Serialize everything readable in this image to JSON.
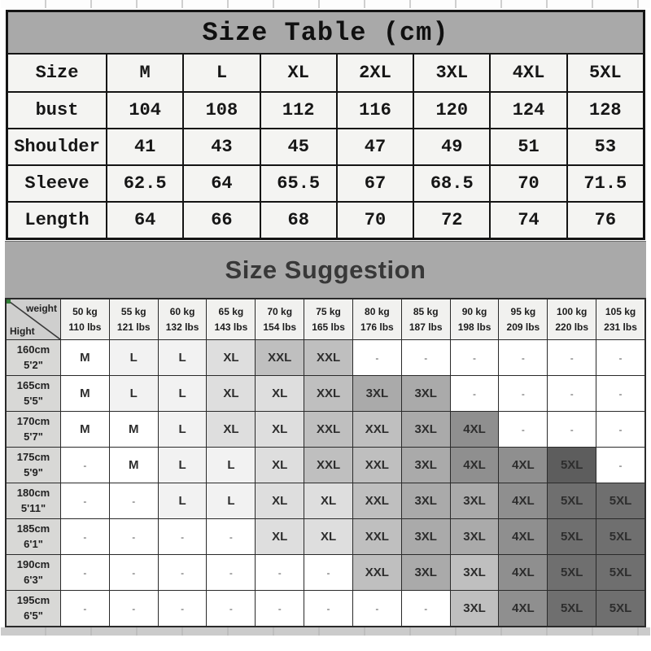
{
  "colors": {
    "table_header_bg": "#a9a9a9",
    "banner_bg": "#a9a9a9",
    "border_dark": "#141414",
    "shade_darkest": "#5d5d5d"
  },
  "size_table": {
    "title": "Size Table (cm)",
    "rows": [
      {
        "label": "Size",
        "values": [
          "M",
          "L",
          "XL",
          "2XL",
          "3XL",
          "4XL",
          "5XL"
        ]
      },
      {
        "label": "bust",
        "values": [
          "104",
          "108",
          "112",
          "116",
          "120",
          "124",
          "128"
        ]
      },
      {
        "label": "Shoulder",
        "values": [
          "41",
          "43",
          "45",
          "47",
          "49",
          "51",
          "53"
        ]
      },
      {
        "label": "Sleeve",
        "values": [
          "62.5",
          "64",
          "65.5",
          "67",
          "68.5",
          "70",
          "71.5"
        ]
      },
      {
        "label": "Length",
        "values": [
          "64",
          "66",
          "68",
          "70",
          "72",
          "74",
          "76"
        ]
      }
    ]
  },
  "suggestion_table": {
    "title": "Size Suggestion",
    "corner": {
      "top": "weight",
      "bottom": "Hight"
    },
    "weights": [
      {
        "kg": "50 kg",
        "lbs": "110 lbs"
      },
      {
        "kg": "55 kg",
        "lbs": "121 lbs"
      },
      {
        "kg": "60 kg",
        "lbs": "132 lbs"
      },
      {
        "kg": "65 kg",
        "lbs": "143 lbs"
      },
      {
        "kg": "70 kg",
        "lbs": "154 lbs"
      },
      {
        "kg": "75 kg",
        "lbs": "165 lbs"
      },
      {
        "kg": "80 kg",
        "lbs": "176 lbs"
      },
      {
        "kg": "85 kg",
        "lbs": "187 lbs"
      },
      {
        "kg": "90 kg",
        "lbs": "198 lbs"
      },
      {
        "kg": "95 kg",
        "lbs": "209 lbs"
      },
      {
        "kg": "100 kg",
        "lbs": "220 lbs"
      },
      {
        "kg": "105 kg",
        "lbs": "231 lbs"
      }
    ],
    "shade_palette": [
      "#ffffff",
      "#f2f2f2",
      "#dedede",
      "#cdcdcd",
      "#bfbfbf",
      "#aaaaaa",
      "#8f8f8f",
      "#6f6f6f",
      "#5d5d5d"
    ],
    "rows": [
      {
        "cm": "160cm",
        "ft": "5'2\"",
        "cells": [
          {
            "t": "M",
            "s": 0
          },
          {
            "t": "L",
            "s": 1
          },
          {
            "t": "L",
            "s": 1
          },
          {
            "t": "XL",
            "s": 2
          },
          {
            "t": "XXL",
            "s": 4
          },
          {
            "t": "XXL",
            "s": 4
          },
          {
            "t": "-",
            "s": 0
          },
          {
            "t": "-",
            "s": 0
          },
          {
            "t": "-",
            "s": 0
          },
          {
            "t": "-",
            "s": 0
          },
          {
            "t": "-",
            "s": 0
          },
          {
            "t": "-",
            "s": 0
          }
        ]
      },
      {
        "cm": "165cm",
        "ft": "5'5\"",
        "cells": [
          {
            "t": "M",
            "s": 0
          },
          {
            "t": "L",
            "s": 1
          },
          {
            "t": "L",
            "s": 1
          },
          {
            "t": "XL",
            "s": 2
          },
          {
            "t": "XL",
            "s": 2
          },
          {
            "t": "XXL",
            "s": 4
          },
          {
            "t": "3XL",
            "s": 5
          },
          {
            "t": "3XL",
            "s": 5
          },
          {
            "t": "-",
            "s": 0
          },
          {
            "t": "-",
            "s": 0
          },
          {
            "t": "-",
            "s": 0
          },
          {
            "t": "-",
            "s": 0
          }
        ]
      },
      {
        "cm": "170cm",
        "ft": "5'7\"",
        "cells": [
          {
            "t": "M",
            "s": 0
          },
          {
            "t": "M",
            "s": 0
          },
          {
            "t": "L",
            "s": 1
          },
          {
            "t": "XL",
            "s": 2
          },
          {
            "t": "XL",
            "s": 2
          },
          {
            "t": "XXL",
            "s": 4
          },
          {
            "t": "XXL",
            "s": 4
          },
          {
            "t": "3XL",
            "s": 5
          },
          {
            "t": "4XL",
            "s": 6
          },
          {
            "t": "-",
            "s": 0
          },
          {
            "t": "-",
            "s": 0
          },
          {
            "t": "-",
            "s": 0
          }
        ]
      },
      {
        "cm": "175cm",
        "ft": "5'9\"",
        "cells": [
          {
            "t": "-",
            "s": 0
          },
          {
            "t": "M",
            "s": 0
          },
          {
            "t": "L",
            "s": 1
          },
          {
            "t": "L",
            "s": 1
          },
          {
            "t": "XL",
            "s": 2
          },
          {
            "t": "XXL",
            "s": 4
          },
          {
            "t": "XXL",
            "s": 4
          },
          {
            "t": "3XL",
            "s": 5
          },
          {
            "t": "4XL",
            "s": 6
          },
          {
            "t": "4XL",
            "s": 6
          },
          {
            "t": "5XL",
            "s": 8
          },
          {
            "t": "-",
            "s": 0
          }
        ]
      },
      {
        "cm": "180cm",
        "ft": "5'11\"",
        "cells": [
          {
            "t": "-",
            "s": 0
          },
          {
            "t": "-",
            "s": 0
          },
          {
            "t": "L",
            "s": 1
          },
          {
            "t": "L",
            "s": 1
          },
          {
            "t": "XL",
            "s": 2
          },
          {
            "t": "XL",
            "s": 2
          },
          {
            "t": "XXL",
            "s": 4
          },
          {
            "t": "3XL",
            "s": 5
          },
          {
            "t": "3XL",
            "s": 5
          },
          {
            "t": "4XL",
            "s": 6
          },
          {
            "t": "5XL",
            "s": 7
          },
          {
            "t": "5XL",
            "s": 7
          }
        ]
      },
      {
        "cm": "185cm",
        "ft": "6'1\"",
        "cells": [
          {
            "t": "-",
            "s": 0
          },
          {
            "t": "-",
            "s": 0
          },
          {
            "t": "-",
            "s": 0
          },
          {
            "t": "-",
            "s": 0
          },
          {
            "t": "XL",
            "s": 2
          },
          {
            "t": "XL",
            "s": 2
          },
          {
            "t": "XXL",
            "s": 4
          },
          {
            "t": "3XL",
            "s": 5
          },
          {
            "t": "3XL",
            "s": 5
          },
          {
            "t": "4XL",
            "s": 6
          },
          {
            "t": "5XL",
            "s": 7
          },
          {
            "t": "5XL",
            "s": 7
          }
        ]
      },
      {
        "cm": "190cm",
        "ft": "6'3\"",
        "cells": [
          {
            "t": "-",
            "s": 0
          },
          {
            "t": "-",
            "s": 0
          },
          {
            "t": "-",
            "s": 0
          },
          {
            "t": "-",
            "s": 0
          },
          {
            "t": "-",
            "s": 0
          },
          {
            "t": "-",
            "s": 0
          },
          {
            "t": "XXL",
            "s": 4
          },
          {
            "t": "3XL",
            "s": 5
          },
          {
            "t": "3XL",
            "s": 4
          },
          {
            "t": "4XL",
            "s": 6
          },
          {
            "t": "5XL",
            "s": 7
          },
          {
            "t": "5XL",
            "s": 7
          }
        ]
      },
      {
        "cm": "195cm",
        "ft": "6'5\"",
        "cells": [
          {
            "t": "-",
            "s": 0
          },
          {
            "t": "-",
            "s": 0
          },
          {
            "t": "-",
            "s": 0
          },
          {
            "t": "-",
            "s": 0
          },
          {
            "t": "-",
            "s": 0
          },
          {
            "t": "-",
            "s": 0
          },
          {
            "t": "-",
            "s": 0
          },
          {
            "t": "-",
            "s": 0
          },
          {
            "t": "3XL",
            "s": 4
          },
          {
            "t": "4XL",
            "s": 6
          },
          {
            "t": "5XL",
            "s": 7
          },
          {
            "t": "5XL",
            "s": 7
          }
        ]
      }
    ]
  }
}
